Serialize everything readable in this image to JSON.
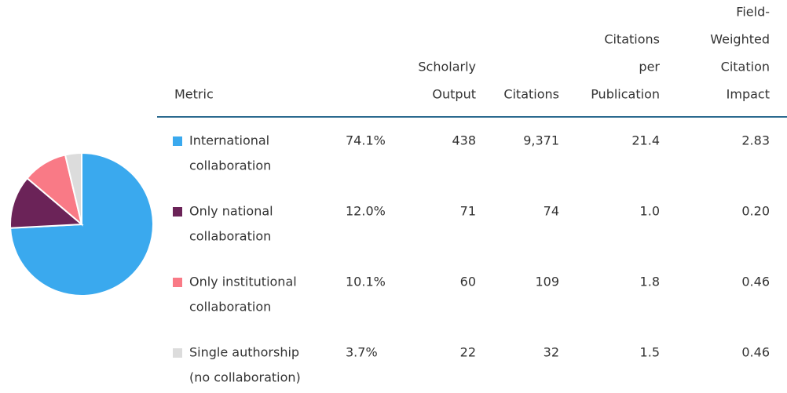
{
  "chart_data": {
    "type": "pie",
    "values": [
      74.1,
      12.0,
      10.1,
      3.7
    ],
    "value_labels": [
      "74.1%",
      "12.0%",
      "10.1%",
      "3.7%"
    ],
    "colors": [
      "#3aa9ee",
      "#6b2358",
      "#f97a86",
      "#dcdcdc"
    ]
  },
  "table": {
    "header": [
      [
        "Metric"
      ],
      [
        "Scholarly",
        "Output"
      ],
      [
        "Citations"
      ],
      [
        "Citations",
        "per",
        "Publication"
      ],
      [
        "Field-",
        "Weighted",
        "Citation",
        "Impact"
      ]
    ],
    "rows": [
      {
        "metric": [
          "International",
          "collaboration"
        ],
        "cells": [
          "438",
          "9,371",
          "21.4",
          "2.83"
        ]
      },
      {
        "metric": [
          "Only national",
          "collaboration"
        ],
        "cells": [
          "71",
          "74",
          "1.0",
          "0.20"
        ]
      },
      {
        "metric": [
          "Only institutional",
          "collaboration"
        ],
        "cells": [
          "60",
          "109",
          "1.8",
          "0.46"
        ]
      },
      {
        "metric": [
          "Single authorship",
          "(no collaboration)"
        ],
        "cells": [
          "22",
          "32",
          "1.5",
          "0.46"
        ]
      }
    ]
  }
}
